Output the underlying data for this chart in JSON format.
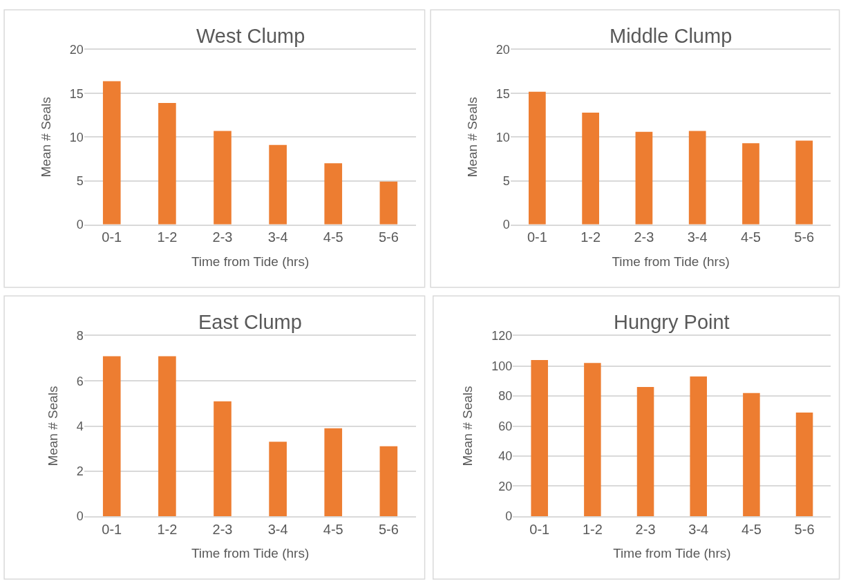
{
  "chart_data": [
    {
      "type": "bar",
      "title": "West Clump",
      "xlabel": "Time from Tide (hrs)",
      "ylabel": "Mean # Seals",
      "categories": [
        "0-1",
        "1-2",
        "2-3",
        "3-4",
        "4-5",
        "5-6"
      ],
      "values": [
        16.4,
        13.9,
        10.7,
        9.1,
        7.0,
        4.9
      ],
      "color": "#ed7d31",
      "ylim": [
        0,
        20
      ],
      "yticks": [
        0,
        5,
        10,
        15,
        20
      ],
      "grid": "y"
    },
    {
      "type": "bar",
      "title": "Middle Clump",
      "xlabel": "Time from Tide (hrs)",
      "ylabel": "Mean # Seals",
      "categories": [
        "0-1",
        "1-2",
        "2-3",
        "3-4",
        "4-5",
        "5-6"
      ],
      "values": [
        15.2,
        12.8,
        10.6,
        10.7,
        9.3,
        9.6
      ],
      "color": "#ed7d31",
      "ylim": [
        0,
        20
      ],
      "yticks": [
        0,
        5,
        10,
        15,
        20
      ],
      "grid": "y"
    },
    {
      "type": "bar",
      "title": "East Clump",
      "xlabel": "Time from Tide (hrs)",
      "ylabel": "Mean # Seals",
      "categories": [
        "0-1",
        "1-2",
        "2-3",
        "3-4",
        "4-5",
        "5-6"
      ],
      "values": [
        7.1,
        7.1,
        5.1,
        3.3,
        3.9,
        3.1
      ],
      "color": "#ed7d31",
      "ylim": [
        0,
        8
      ],
      "yticks": [
        0,
        2,
        4,
        6,
        8
      ],
      "grid": "y"
    },
    {
      "type": "bar",
      "title": "Hungry Point",
      "xlabel": "Time from Tide (hrs)",
      "ylabel": "Mean # Seals",
      "categories": [
        "0-1",
        "1-2",
        "2-3",
        "3-4",
        "4-5",
        "5-6"
      ],
      "values": [
        104,
        102,
        86,
        93,
        82,
        69
      ],
      "color": "#ed7d31",
      "ylim": [
        0,
        120
      ],
      "yticks": [
        0,
        20,
        40,
        60,
        80,
        100,
        120
      ],
      "grid": "y"
    }
  ]
}
